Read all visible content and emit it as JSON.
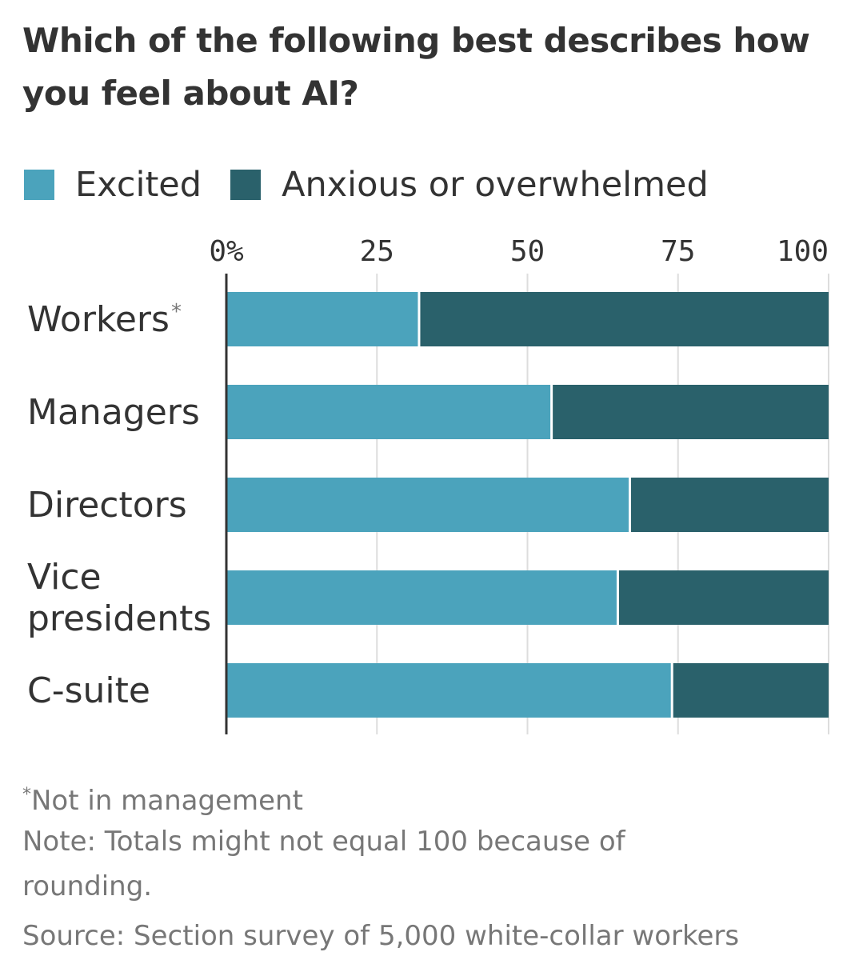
{
  "title": "Which of the following best describes how you feel about AI?",
  "legend": {
    "excited_label": "Excited",
    "anxious_label": "Anxious or overwhelmed"
  },
  "colors": {
    "excited": "#4ba3bc",
    "anxious": "#2a616b",
    "axis": "#333333",
    "grid": "#dddddd",
    "text": "#333333",
    "footnote": "#777777"
  },
  "chart_data": {
    "type": "bar",
    "orientation": "horizontal",
    "stacked": true,
    "title": "Which of the following best describes how you feel about AI?",
    "categories": [
      "Workers",
      "Managers",
      "Directors",
      "Vice presidents",
      "C-suite"
    ],
    "category_labels": [
      {
        "lines": [
          "Workers"
        ],
        "marker": "*"
      },
      {
        "lines": [
          "Managers"
        ],
        "marker": ""
      },
      {
        "lines": [
          "Directors"
        ],
        "marker": ""
      },
      {
        "lines": [
          "Vice",
          "presidents"
        ],
        "marker": ""
      },
      {
        "lines": [
          "C-suite"
        ],
        "marker": ""
      }
    ],
    "series": [
      {
        "name": "Excited",
        "values": [
          32,
          54,
          67,
          65,
          74
        ]
      },
      {
        "name": "Anxious or overwhelmed",
        "values": [
          68,
          46,
          33,
          35,
          26
        ]
      }
    ],
    "xlim": [
      0,
      100
    ],
    "xticks": [
      0,
      25,
      50,
      75,
      100
    ],
    "xtick_labels": [
      "0%",
      "25",
      "50",
      "75",
      "100"
    ],
    "xlabel": "",
    "ylabel": "",
    "grid": true,
    "legend_position": "top-left"
  },
  "footnotes": {
    "asterisk_marker": "*",
    "asterisk_text": "Not in management",
    "note": "Note: Totals might not equal 100 because of",
    "note_cont": "rounding.",
    "source": "Source: Section survey of 5,000 white-collar workers"
  }
}
